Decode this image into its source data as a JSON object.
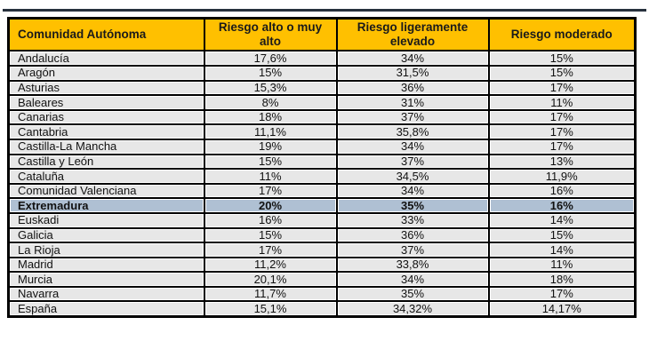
{
  "chart_data": {
    "type": "table",
    "columns": [
      "Comunidad Autónoma",
      "Riesgo alto o muy alto",
      "Riesgo ligeramente elevado",
      "Riesgo moderado"
    ],
    "rows": [
      [
        "Andalucía",
        "17,6%",
        "34%",
        "15%"
      ],
      [
        "Aragón",
        "15%",
        "31,5%",
        "15%"
      ],
      [
        "Asturias",
        "15,3%",
        "36%",
        "17%"
      ],
      [
        "Baleares",
        "8%",
        "31%",
        "11%"
      ],
      [
        "Canarias",
        "18%",
        "37%",
        "17%"
      ],
      [
        "Cantabria",
        "11,1%",
        "35,8%",
        "17%"
      ],
      [
        "Castilla-La Mancha",
        "19%",
        "34%",
        "17%"
      ],
      [
        "Castilla y León",
        "15%",
        "37%",
        "13%"
      ],
      [
        "Cataluña",
        "11%",
        "34,5%",
        "11,9%"
      ],
      [
        "Comunidad Valenciana",
        "17%",
        "34%",
        "16%"
      ],
      [
        "Extremadura",
        "20%",
        "35%",
        "16%"
      ],
      [
        "Euskadi",
        "16%",
        "33%",
        "14%"
      ],
      [
        "Galicia",
        "15%",
        "36%",
        "15%"
      ],
      [
        "La Rioja",
        "17%",
        "37%",
        "14%"
      ],
      [
        "Madrid",
        "11,2%",
        "33,8%",
        "11%"
      ],
      [
        "Murcia",
        "20,1%",
        "34%",
        "18%"
      ],
      [
        "Navarra",
        "11,7%",
        "35%",
        "17%"
      ],
      [
        "España",
        "15,1%",
        "34,32%",
        "14,17%"
      ]
    ],
    "highlighted_row": "Extremadura",
    "layout_hints": {
      "grid": "on",
      "header_position": "top"
    }
  },
  "colors": {
    "header_bg": "#FFC000",
    "header_text": "#1A1A1A",
    "row_bg": "#E7E7E7",
    "highlight_bg": "#AFC0D3",
    "cell_text": "#111111",
    "grid": "#000000",
    "top_rule": "#27313D"
  }
}
